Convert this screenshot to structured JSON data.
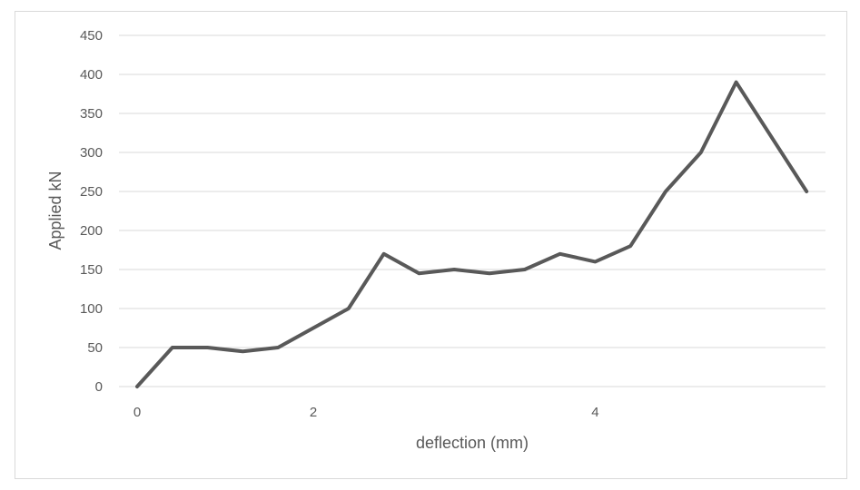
{
  "chart_data": {
    "type": "line",
    "xlabel": "deflection (mm)",
    "ylabel": "Applied kN",
    "ylim": [
      0,
      450
    ],
    "y_ticks": [
      "0",
      "50",
      "100",
      "150",
      "200",
      "250",
      "300",
      "350",
      "400",
      "450"
    ],
    "x_tick_labels": [
      {
        "label": "0",
        "index": 0
      },
      {
        "label": "2",
        "index": 5
      },
      {
        "label": "4",
        "index": 13
      }
    ],
    "grid": "horizontal",
    "legend": "none",
    "series": [
      {
        "values": [
          0,
          50,
          50,
          45,
          50,
          75,
          100,
          170,
          145,
          150,
          145,
          150,
          170,
          160,
          180,
          250,
          300,
          390,
          320,
          250
        ],
        "color": "#595959"
      }
    ]
  }
}
